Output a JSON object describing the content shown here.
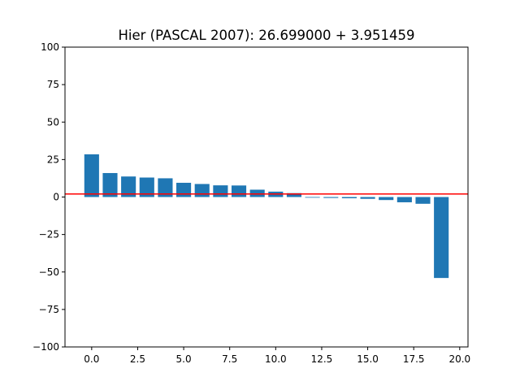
{
  "chart_data": {
    "type": "bar",
    "title": "Hier (PASCAL 2007): 26.699000 + 3.951459",
    "xlabel": "",
    "ylabel": "",
    "x": [
      0,
      1,
      2,
      3,
      4,
      5,
      6,
      7,
      8,
      9,
      10,
      11,
      12,
      13,
      14,
      15,
      16,
      17,
      18,
      19
    ],
    "values": [
      28.5,
      16.0,
      13.7,
      13.0,
      12.5,
      9.5,
      8.7,
      7.8,
      7.7,
      4.9,
      3.6,
      2.6,
      -0.2,
      -0.6,
      -0.8,
      -1.2,
      -2.0,
      -3.5,
      -4.5,
      -54.0
    ],
    "xlim": [
      -1.45,
      20.45
    ],
    "ylim": [
      -100,
      100
    ],
    "xticks": [
      0.0,
      2.5,
      5.0,
      7.5,
      10.0,
      12.5,
      15.0,
      17.5,
      20.0
    ],
    "xtick_labels": [
      "0.0",
      "2.5",
      "5.0",
      "7.5",
      "10.0",
      "12.5",
      "15.0",
      "17.5",
      "20.0"
    ],
    "yticks": [
      100,
      75,
      50,
      25,
      0,
      -25,
      -50,
      -75,
      -100
    ],
    "ytick_labels": [
      "100",
      "75",
      "50",
      "25",
      "0",
      "−25",
      "−50",
      "−75",
      "−100"
    ],
    "bar_color": "#1f77b4",
    "hline": {
      "y": 2.0,
      "color": "#ff0000"
    },
    "grid": false,
    "legend": "none"
  }
}
